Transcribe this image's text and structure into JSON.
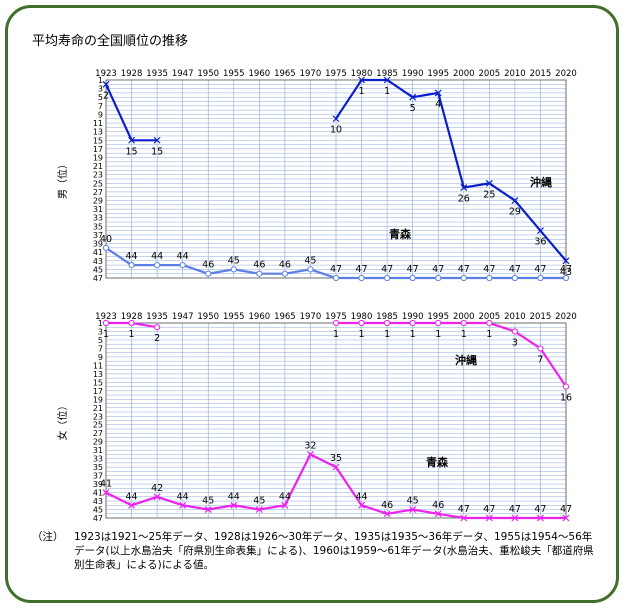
{
  "title": "平均寿命の全国順位の推移",
  "colors": {
    "frame": "#3f6f2a",
    "grid": "#8aaad8",
    "okinawa_male": "#0a1ecc",
    "aomori_male": "#5b7fe6",
    "female": "#ee22ee"
  },
  "chart_data": [
    {
      "type": "line",
      "name": "male",
      "ylabel": "男（位）",
      "x_labels": [
        "1923",
        "1928",
        "1935",
        "1947",
        "1950",
        "1955",
        "1960",
        "1965",
        "1970",
        "1975",
        "1980",
        "1985",
        "1990",
        "1995",
        "2000",
        "2005",
        "2010",
        "2015",
        "2020"
      ],
      "ylim": [
        1,
        47
      ],
      "y_ticks": [
        1,
        3,
        5,
        7,
        9,
        11,
        13,
        15,
        17,
        19,
        21,
        23,
        25,
        27,
        29,
        31,
        33,
        35,
        37,
        39,
        41,
        43,
        45,
        47
      ],
      "y_reversed": true,
      "grid": true,
      "series": [
        {
          "name": "沖縄",
          "color": "#0a1ecc",
          "marker": "x",
          "segments": [
            [
              [
                0,
                2
              ],
              [
                1,
                15
              ],
              [
                2,
                15
              ]
            ],
            [
              [
                9,
                10
              ],
              [
                10,
                1
              ],
              [
                11,
                1
              ],
              [
                12,
                5
              ],
              [
                13,
                4
              ],
              [
                14,
                26
              ],
              [
                15,
                25
              ],
              [
                16,
                29
              ],
              [
                17,
                36
              ],
              [
                18,
                43
              ]
            ]
          ],
          "labels": [
            "2",
            "15",
            "15",
            "10",
            "1",
            "1",
            "5",
            "4",
            "26",
            "25",
            "29",
            "36",
            "43"
          ]
        },
        {
          "name": "青森",
          "color": "#5b7fe6",
          "marker": "o",
          "segments": [
            [
              [
                0,
                40
              ],
              [
                1,
                44
              ],
              [
                2,
                44
              ],
              [
                3,
                44
              ],
              [
                4,
                46
              ],
              [
                5,
                45
              ],
              [
                6,
                46
              ],
              [
                7,
                46
              ],
              [
                8,
                45
              ],
              [
                9,
                47
              ],
              [
                10,
                47
              ],
              [
                11,
                47
              ],
              [
                12,
                47
              ],
              [
                13,
                47
              ],
              [
                14,
                47
              ],
              [
                15,
                47
              ],
              [
                16,
                47
              ],
              [
                17,
                47
              ],
              [
                18,
                47
              ]
            ]
          ],
          "labels": [
            "40",
            "44",
            "44",
            "44",
            "46",
            "45",
            "46",
            "46",
            "45",
            "47",
            "47",
            "47",
            "47",
            "47",
            "47",
            "47",
            "47",
            "47",
            "47"
          ]
        }
      ]
    },
    {
      "type": "line",
      "name": "female",
      "ylabel": "女（位）",
      "x_labels": [
        "1923",
        "1928",
        "1935",
        "1947",
        "1950",
        "1955",
        "1960",
        "1965",
        "1970",
        "1975",
        "1980",
        "1985",
        "1990",
        "1995",
        "2000",
        "2005",
        "2010",
        "2015",
        "2020"
      ],
      "ylim": [
        1,
        47
      ],
      "y_ticks": [
        1,
        3,
        5,
        7,
        9,
        11,
        13,
        15,
        17,
        19,
        21,
        23,
        25,
        27,
        29,
        31,
        33,
        35,
        37,
        39,
        41,
        43,
        45,
        47
      ],
      "y_reversed": true,
      "grid": true,
      "series": [
        {
          "name": "沖縄",
          "color": "#ee22ee",
          "marker": "o",
          "segments": [
            [
              [
                0,
                1
              ],
              [
                1,
                1
              ],
              [
                2,
                2
              ]
            ],
            [
              [
                9,
                1
              ],
              [
                10,
                1
              ],
              [
                11,
                1
              ],
              [
                12,
                1
              ],
              [
                13,
                1
              ],
              [
                14,
                1
              ],
              [
                15,
                1
              ],
              [
                16,
                3
              ],
              [
                17,
                7
              ],
              [
                18,
                16
              ]
            ]
          ],
          "labels": [
            "1",
            "1",
            "2",
            "1",
            "1",
            "1",
            "1",
            "1",
            "1",
            "1",
            "3",
            "7",
            "16"
          ]
        },
        {
          "name": "青森",
          "color": "#ee22ee",
          "marker": "x",
          "segments": [
            [
              [
                0,
                41
              ],
              [
                1,
                44
              ],
              [
                2,
                42
              ],
              [
                3,
                44
              ],
              [
                4,
                45
              ],
              [
                5,
                44
              ],
              [
                6,
                45
              ],
              [
                7,
                44
              ],
              [
                8,
                32
              ],
              [
                9,
                35
              ],
              [
                10,
                44
              ],
              [
                11,
                46
              ],
              [
                12,
                45
              ],
              [
                13,
                46
              ],
              [
                14,
                47
              ],
              [
                15,
                47
              ],
              [
                16,
                47
              ],
              [
                17,
                47
              ],
              [
                18,
                47
              ]
            ]
          ],
          "labels": [
            "41",
            "44",
            "42",
            "44",
            "45",
            "44",
            "45",
            "44",
            "32",
            "35",
            "44",
            "46",
            "45",
            "46",
            "47",
            "47",
            "47",
            "47",
            "47"
          ]
        }
      ]
    }
  ],
  "note": {
    "label": "（注）",
    "text": "1923は1921～25年データ、1928は1926～30年データ、1935は1935～36年データ、1955は1954～56年データ(以上水島治夫「府県別生命表集」による)、1960は1959～61年データ(水島治夫、重松峻夫「都道府県別生命表」による)による値。"
  }
}
